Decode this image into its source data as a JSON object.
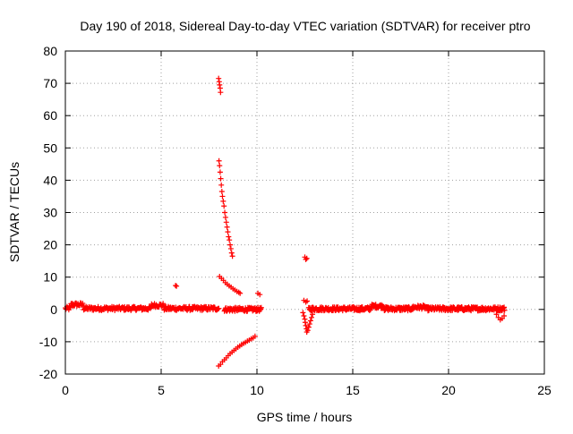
{
  "chart_data": {
    "type": "scatter",
    "title": "Day 190 of 2018, Sidereal Day-to-day VTEC variation (SDTVAR) for receiver ptro",
    "xlabel": "GPS time / hours",
    "ylabel": "SDTVAR / TECUs",
    "xlim": [
      0,
      25
    ],
    "ylim": [
      -20,
      80
    ],
    "xticks": [
      0,
      5,
      10,
      15,
      20,
      25
    ],
    "yticks": [
      -20,
      -10,
      0,
      10,
      20,
      30,
      40,
      50,
      60,
      70,
      80
    ],
    "grid": true,
    "marker": "+",
    "color": "#ff0000",
    "series": [
      {
        "name": "baseline-early",
        "x_range": [
          0.0,
          8.0
        ],
        "x_step": 0.06,
        "y_mean": 0.3,
        "y_spread": 1.2,
        "bumps": [
          {
            "x": 0.6,
            "dy": 1.2
          },
          {
            "x": 4.8,
            "dy": 1.0
          }
        ]
      },
      {
        "name": "baseline-mid",
        "x_range": [
          8.3,
          10.2
        ],
        "x_step": 0.05,
        "y_mean": 0.0,
        "y_spread": 1.2
      },
      {
        "name": "baseline-late",
        "x_range": [
          12.7,
          22.9
        ],
        "x_step": 0.05,
        "y_mean": 0.2,
        "y_spread": 1.2,
        "bumps": [
          {
            "x": 16.3,
            "dy": 0.8
          },
          {
            "x": 18.5,
            "dy": 0.5
          }
        ]
      },
      {
        "name": "baseline-end-dip",
        "points": [
          [
            22.5,
            -1.5
          ],
          [
            22.6,
            -2.5
          ],
          [
            22.7,
            -3.2
          ],
          [
            22.8,
            -2.8
          ],
          [
            22.9,
            -2.0
          ]
        ]
      },
      {
        "name": "upper-arc",
        "points": [
          [
            8.05,
            10.2
          ],
          [
            8.15,
            9.6
          ],
          [
            8.25,
            9.0
          ],
          [
            8.35,
            8.3
          ],
          [
            8.45,
            7.8
          ],
          [
            8.55,
            7.3
          ],
          [
            8.65,
            6.9
          ],
          [
            8.75,
            6.4
          ],
          [
            8.85,
            6.0
          ],
          [
            8.95,
            5.6
          ],
          [
            9.05,
            5.3
          ],
          [
            9.12,
            5.0
          ]
        ]
      },
      {
        "name": "lower-arc",
        "points": [
          [
            8.0,
            -17.5
          ],
          [
            8.1,
            -17.0
          ],
          [
            8.2,
            -16.2
          ],
          [
            8.3,
            -15.6
          ],
          [
            8.4,
            -15.0
          ],
          [
            8.5,
            -14.3
          ],
          [
            8.6,
            -13.7
          ],
          [
            8.7,
            -13.2
          ],
          [
            8.8,
            -12.7
          ],
          [
            8.9,
            -12.2
          ],
          [
            9.0,
            -11.7
          ],
          [
            9.1,
            -11.3
          ],
          [
            9.2,
            -10.9
          ],
          [
            9.3,
            -10.5
          ],
          [
            9.4,
            -10.2
          ],
          [
            9.5,
            -9.8
          ],
          [
            9.6,
            -9.5
          ],
          [
            9.7,
            -9.1
          ],
          [
            9.8,
            -8.8
          ],
          [
            9.9,
            -8.3
          ]
        ]
      },
      {
        "name": "steep-arc",
        "points": [
          [
            8.02,
            46.0
          ],
          [
            8.05,
            44.5
          ],
          [
            8.08,
            42.5
          ],
          [
            8.11,
            40.5
          ],
          [
            8.14,
            38.5
          ],
          [
            8.17,
            36.5
          ],
          [
            8.2,
            35.0
          ],
          [
            8.24,
            33.5
          ],
          [
            8.28,
            32.0
          ],
          [
            8.32,
            30.0
          ],
          [
            8.36,
            28.5
          ],
          [
            8.4,
            27.0
          ],
          [
            8.44,
            25.5
          ],
          [
            8.48,
            24.0
          ],
          [
            8.52,
            22.5
          ],
          [
            8.56,
            21.5
          ],
          [
            8.6,
            20.0
          ],
          [
            8.64,
            18.8
          ],
          [
            8.68,
            17.5
          ],
          [
            8.72,
            16.5
          ]
        ]
      },
      {
        "name": "top-cluster",
        "points": [
          [
            8.0,
            71.5
          ],
          [
            8.03,
            70.5
          ],
          [
            8.05,
            69.5
          ],
          [
            8.08,
            68.5
          ],
          [
            8.1,
            67.2
          ]
        ]
      },
      {
        "name": "outliers",
        "points": [
          [
            5.75,
            7.4
          ],
          [
            5.8,
            7.2
          ],
          [
            10.05,
            5.0
          ],
          [
            10.15,
            4.6
          ],
          [
            12.5,
            16.2
          ],
          [
            12.55,
            15.5
          ],
          [
            12.6,
            15.8
          ]
        ]
      },
      {
        "name": "post-gap-drop",
        "points": [
          [
            12.45,
            2.8
          ],
          [
            12.55,
            2.3
          ],
          [
            12.62,
            2.6
          ],
          [
            12.4,
            -1.0
          ],
          [
            12.45,
            -2.0
          ],
          [
            12.5,
            -3.0
          ],
          [
            12.52,
            -4.0
          ],
          [
            12.55,
            -5.0
          ],
          [
            12.58,
            -6.0
          ],
          [
            12.6,
            -7.0
          ],
          [
            12.65,
            -6.5
          ],
          [
            12.7,
            -5.5
          ],
          [
            12.75,
            -4.5
          ],
          [
            12.8,
            -3.5
          ],
          [
            12.85,
            -2.5
          ],
          [
            12.9,
            -1.5
          ]
        ]
      }
    ]
  }
}
